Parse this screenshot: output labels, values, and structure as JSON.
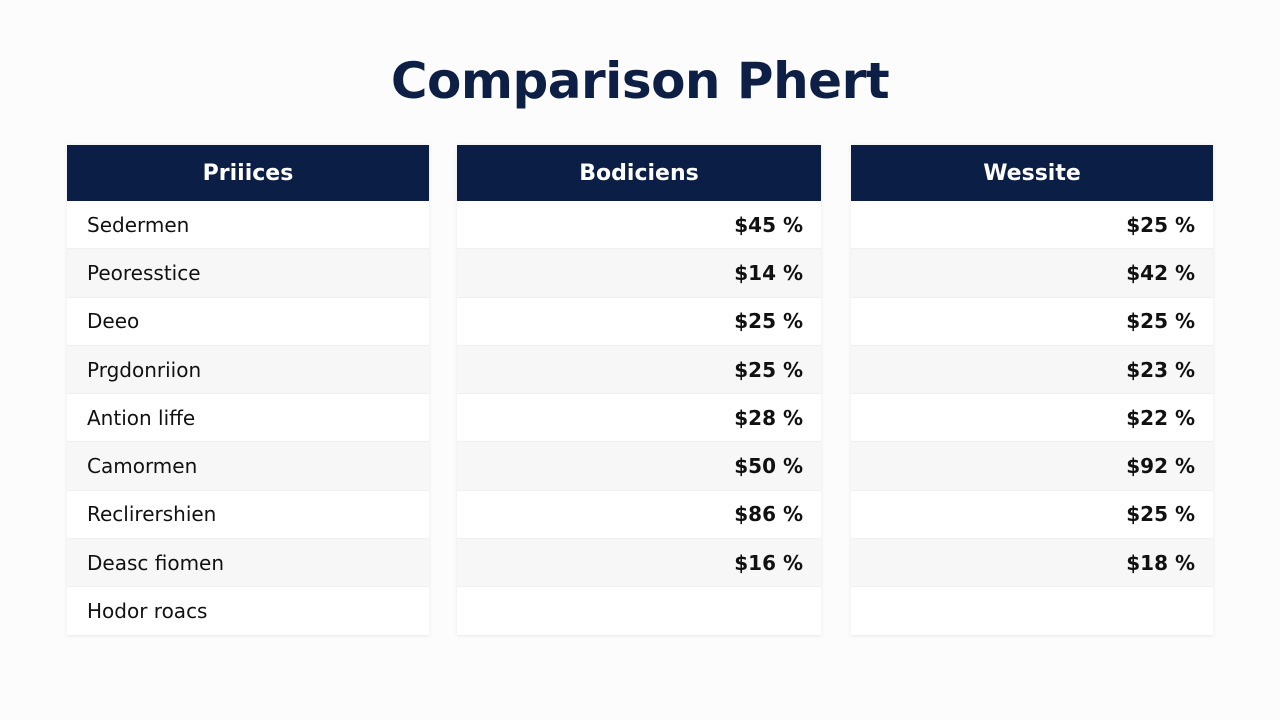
{
  "title": "Comparison Phert",
  "table": {
    "headers": [
      "Priiices",
      "Bodiciens",
      "Wessite"
    ],
    "rows": [
      [
        "Sedermen",
        "$45 %",
        "$25 %"
      ],
      [
        "Peoresstice",
        "$14 %",
        "$42 %"
      ],
      [
        "Deeo",
        "$25 %",
        "$25 %"
      ],
      [
        "Prgdonriion",
        "$25 %",
        "$23 %"
      ],
      [
        "Antion liffe",
        "$28 %",
        "$22 %"
      ],
      [
        "Camormen",
        "$50 %",
        "$92 %"
      ],
      [
        "Reclirershien",
        "$86 %",
        "$25 %"
      ],
      [
        "Deasc fiomen",
        "$16 %",
        "$18 %"
      ],
      [
        "Hodor roacs",
        null,
        null
      ]
    ]
  }
}
